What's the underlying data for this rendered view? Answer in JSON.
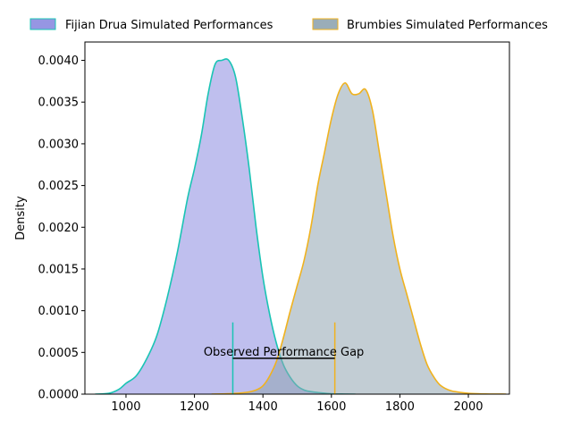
{
  "chart_data": {
    "type": "area",
    "title": "",
    "xlabel": "",
    "ylabel": "Density",
    "xlim": [
      880,
      2120
    ],
    "ylim": [
      0,
      0.00422
    ],
    "xticks": [
      1000,
      1200,
      1400,
      1600,
      1800,
      2000
    ],
    "xtick_labels": [
      "1000",
      "1200",
      "1400",
      "1600",
      "1800",
      "2000"
    ],
    "yticks": [
      0,
      0.0005,
      0.001,
      0.0015,
      0.002,
      0.0025,
      0.003,
      0.0035,
      0.004
    ],
    "ytick_labels": [
      "0.0000",
      "0.0005",
      "0.0010",
      "0.0015",
      "0.0020",
      "0.0025",
      "0.0030",
      "0.0035",
      "0.0040"
    ],
    "grid": false,
    "legend_position": "top",
    "series": [
      {
        "name": "Fijian Drua Simulated Performances",
        "fill_color": "#8b8be0",
        "line_color": "#1ac4b4",
        "x": [
          910,
          950,
          980,
          1000,
          1030,
          1060,
          1090,
          1120,
          1150,
          1180,
          1200,
          1220,
          1240,
          1260,
          1280,
          1300,
          1320,
          1340,
          1360,
          1380,
          1400,
          1420,
          1440,
          1460,
          1480,
          1500,
          1520,
          1540,
          1560,
          1600,
          1640,
          1670
        ],
        "values": [
          0,
          1e-05,
          6e-05,
          0.00013,
          0.00022,
          0.00042,
          0.0007,
          0.00115,
          0.0017,
          0.00235,
          0.0027,
          0.0031,
          0.0036,
          0.00395,
          0.004,
          0.004,
          0.0038,
          0.0033,
          0.0027,
          0.002,
          0.0014,
          0.00095,
          0.0006,
          0.00035,
          0.0002,
          0.0001,
          5e-05,
          3e-05,
          2e-05,
          5e-06,
          1e-06,
          0
        ]
      },
      {
        "name": "Brumbies Simulated Performances",
        "fill_color": "#8fa4b0",
        "line_color": "#f0b21e",
        "x": [
          1250,
          1300,
          1350,
          1380,
          1400,
          1420,
          1440,
          1460,
          1480,
          1500,
          1520,
          1540,
          1560,
          1580,
          1600,
          1620,
          1640,
          1660,
          1680,
          1700,
          1720,
          1740,
          1760,
          1780,
          1800,
          1820,
          1840,
          1860,
          1880,
          1900,
          1920,
          1950,
          2000,
          2050,
          2110
        ],
        "values": [
          0,
          5e-06,
          2e-05,
          5e-05,
          0.0001,
          0.00022,
          0.0004,
          0.00068,
          0.001,
          0.0013,
          0.0016,
          0.002,
          0.0025,
          0.0029,
          0.0033,
          0.0036,
          0.00373,
          0.0036,
          0.0036,
          0.00365,
          0.0034,
          0.0029,
          0.0024,
          0.0019,
          0.0015,
          0.0012,
          0.0009,
          0.0006,
          0.00035,
          0.0002,
          0.0001,
          4e-05,
          1e-05,
          2e-06,
          0
        ]
      }
    ],
    "reference_lines": [
      {
        "x": 1312,
        "y_top": 0.00086,
        "color": "#1ac4b4"
      },
      {
        "x": 1610,
        "y_top": 0.00086,
        "color": "#f0b21e"
      }
    ],
    "gap_bracket": {
      "x_start": 1312,
      "x_end": 1610,
      "y": 0.00043,
      "color": "#000000"
    },
    "annotation": {
      "text": "Observed Performance Gap",
      "x": 1461,
      "y": 0.00043
    }
  }
}
